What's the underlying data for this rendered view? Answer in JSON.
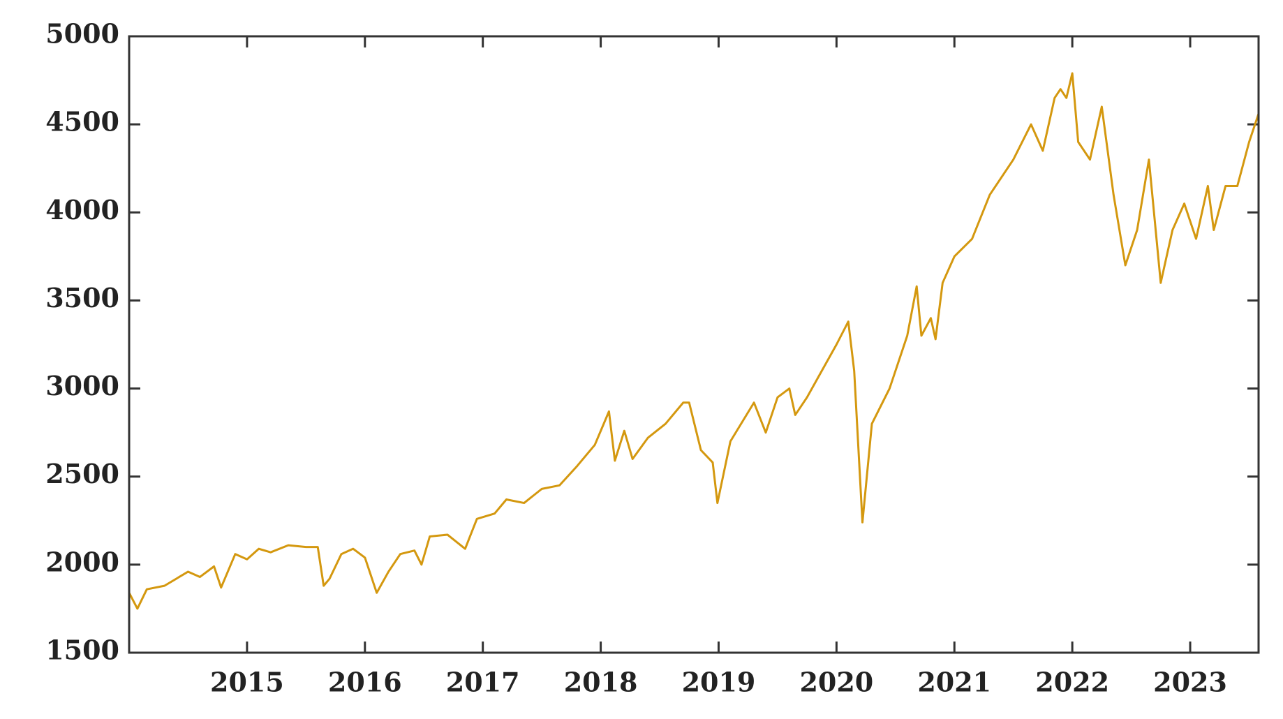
{
  "chart_data": {
    "type": "line",
    "x": [
      2014.0,
      2014.07,
      2014.15,
      2014.3,
      2014.5,
      2014.6,
      2014.72,
      2014.78,
      2014.9,
      2015.0,
      2015.1,
      2015.2,
      2015.35,
      2015.5,
      2015.6,
      2015.65,
      2015.7,
      2015.8,
      2015.9,
      2016.0,
      2016.1,
      2016.2,
      2016.3,
      2016.42,
      2016.48,
      2016.55,
      2016.7,
      2016.85,
      2016.95,
      2017.1,
      2017.2,
      2017.35,
      2017.5,
      2017.65,
      2017.8,
      2017.95,
      2018.07,
      2018.12,
      2018.2,
      2018.27,
      2018.4,
      2018.55,
      2018.7,
      2018.75,
      2018.85,
      2018.95,
      2018.99,
      2019.1,
      2019.3,
      2019.4,
      2019.5,
      2019.6,
      2019.65,
      2019.75,
      2019.85,
      2020.0,
      2020.1,
      2020.15,
      2020.22,
      2020.3,
      2020.45,
      2020.6,
      2020.68,
      2020.72,
      2020.8,
      2020.84,
      2020.9,
      2021.0,
      2021.15,
      2021.3,
      2021.5,
      2021.65,
      2021.75,
      2021.85,
      2021.9,
      2021.95,
      2022.0,
      2022.05,
      2022.15,
      2022.25,
      2022.35,
      2022.45,
      2022.55,
      2022.65,
      2022.75,
      2022.85,
      2022.95,
      2023.05,
      2023.15,
      2023.2,
      2023.3,
      2023.4,
      2023.5,
      2023.58
    ],
    "series": [
      {
        "color": "#d4980f",
        "values": [
          1840,
          1750,
          1860,
          1880,
          1960,
          1930,
          1990,
          1870,
          2060,
          2030,
          2090,
          2070,
          2110,
          2100,
          2100,
          1880,
          1920,
          2060,
          2090,
          2040,
          1840,
          1960,
          2060,
          2080,
          2000,
          2160,
          2170,
          2090,
          2260,
          2290,
          2370,
          2350,
          2430,
          2450,
          2560,
          2680,
          2870,
          2590,
          2760,
          2600,
          2720,
          2800,
          2920,
          2920,
          2650,
          2580,
          2350,
          2700,
          2920,
          2750,
          2950,
          3000,
          2850,
          2950,
          3070,
          3250,
          3380,
          3100,
          2240,
          2800,
          3000,
          3300,
          3580,
          3300,
          3400,
          3280,
          3600,
          3750,
          3850,
          4100,
          4300,
          4500,
          4350,
          4650,
          4700,
          4650,
          4790,
          4400,
          4300,
          4600,
          4100,
          3700,
          3900,
          4300,
          3600,
          3900,
          4050,
          3850,
          4150,
          3900,
          4150,
          4150,
          4400,
          4560
        ]
      }
    ],
    "xlim": [
      2014.0,
      2023.58
    ],
    "xticks": [
      2015,
      2016,
      2017,
      2018,
      2019,
      2020,
      2021,
      2022,
      2023
    ],
    "ylim": [
      1500,
      5000
    ],
    "yticks": [
      1500,
      2000,
      2500,
      3000,
      3500,
      4000,
      4500,
      5000
    ]
  }
}
